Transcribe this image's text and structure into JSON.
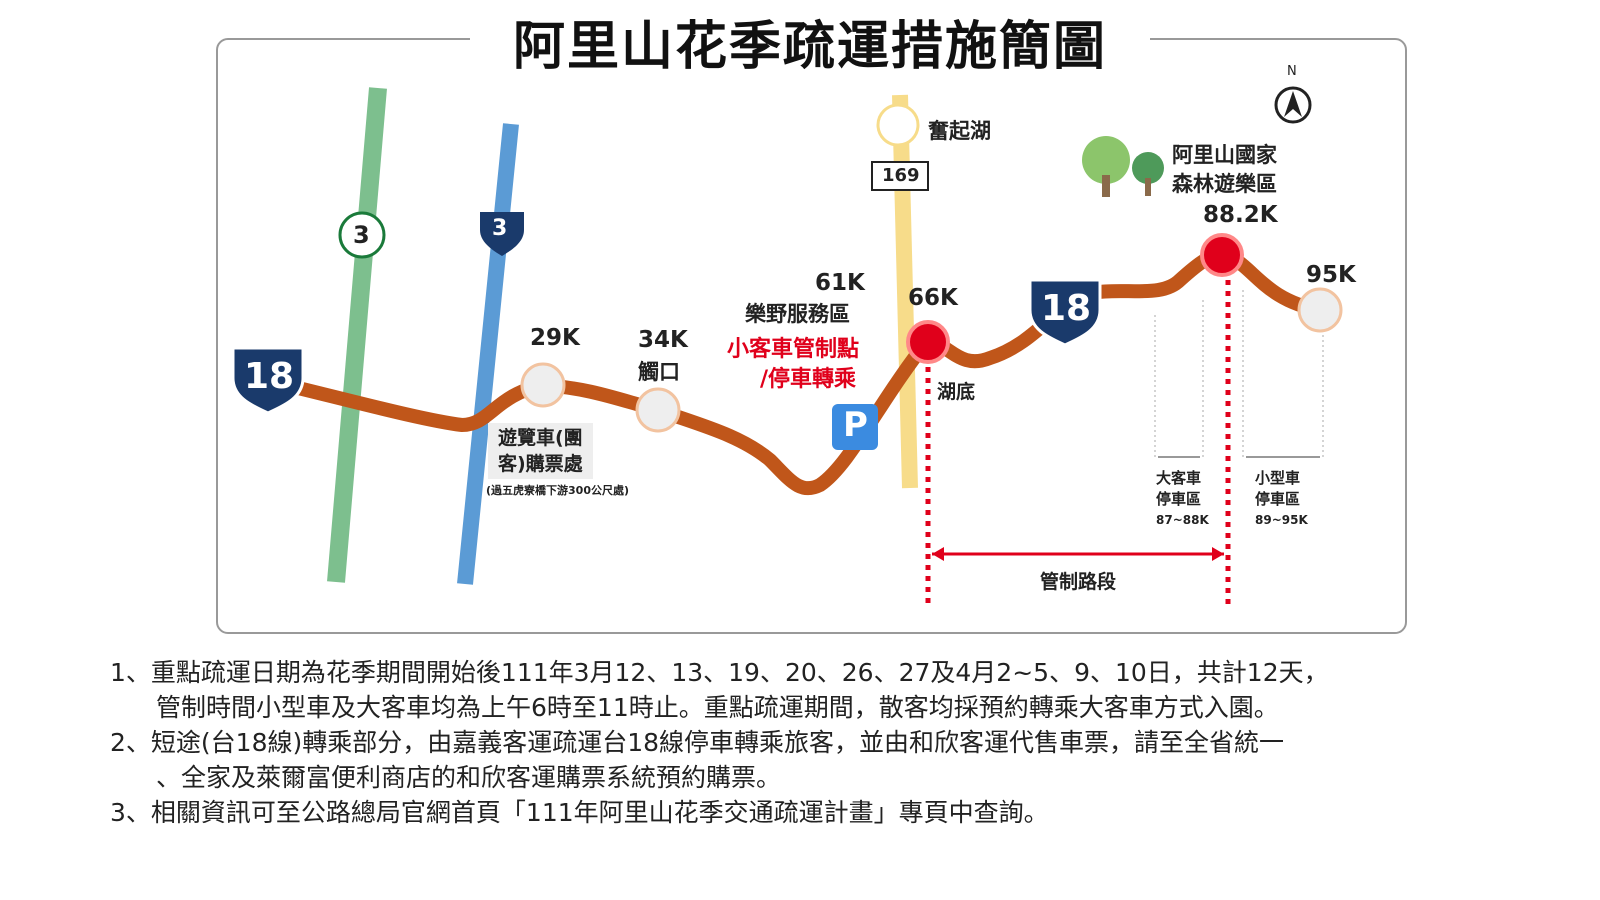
{
  "title": "阿里山花季疏運措施簡圖",
  "compass": "N",
  "route_signs": {
    "prov_18": "18",
    "national_3": "3",
    "prov_3": "3",
    "county_169": "169"
  },
  "places": {
    "fenqihu": "奮起湖",
    "alishan_line1": "阿里山國家",
    "alishan_line2": "森林遊樂區",
    "k88": "88.2K",
    "k95": "95K",
    "k61": "61K",
    "leye": "樂野服務區",
    "control1": "小客車管制點",
    "control2": "/停車轉乘",
    "k66": "66K",
    "hudi": "湖底",
    "k29": "29K",
    "k34": "34K",
    "chukou": "觸口",
    "bus1": "遊覽車(團",
    "bus2": "客)購票處",
    "bus_note": "(過五虎寮橋下游300公尺處)",
    "parking": "P",
    "big_bus1": "大客車",
    "big_bus2": "停車區",
    "big_bus_range": "87~88K",
    "small1": "小型車",
    "small2": "停車區",
    "small_range": "89~95K",
    "control_section": "管制路段"
  },
  "notes": [
    "1、重點疏運日期為花季期間開始後111年3月12、13、19、20、26、27及4月2~5、9、10日，共計12天，",
    "管制時間小型車及大客車均為上午6時至11時止。重點疏運期間，散客均採預約轉乘大客車方式入園。",
    "2、短途(台18線)轉乘部分，由嘉義客運疏運台18線停車轉乘旅客，並由和欣客運代售車票，請至全省統一",
    "、全家及萊爾富便利商店的和欣客運購票系統預約購票。",
    "3、相關資訊可至公路總局官網首頁「111年阿里山花季交通疏運計畫」專頁中查詢。"
  ],
  "colors": {
    "road": "#c0561a",
    "red": "#e0001b",
    "green": "#7dbf8e",
    "blue": "#5b9bd5",
    "yellow": "#f7dc8a"
  }
}
